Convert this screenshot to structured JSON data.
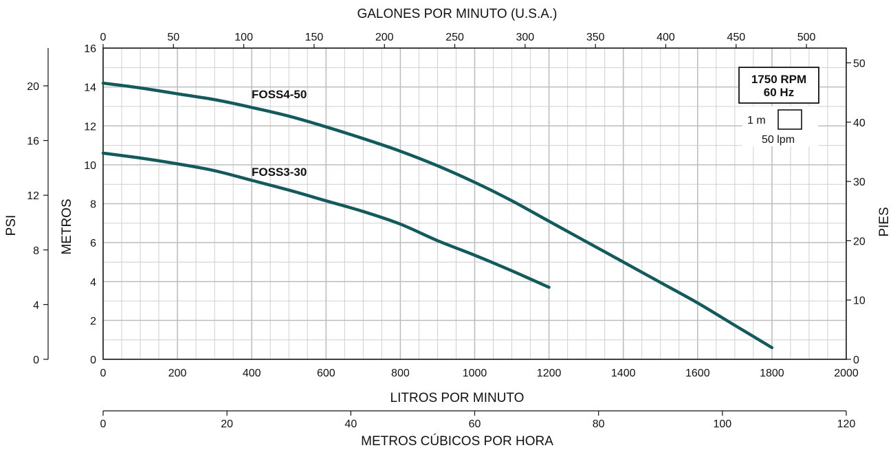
{
  "chart_data": {
    "type": "line",
    "title": "",
    "x_axes": {
      "bottom_primary": {
        "label": "LITROS POR MINUTO",
        "range": [
          0,
          2000
        ],
        "ticks": [
          "0",
          "200",
          "400",
          "600",
          "800",
          "1000",
          "1200",
          "1400",
          "1600",
          "1800",
          "2000"
        ]
      },
      "bottom_secondary": {
        "label": "METROS CÚBICOS POR HORA",
        "range": [
          0,
          120
        ],
        "ticks": [
          "0",
          "20",
          "40",
          "60",
          "80",
          "100",
          "120"
        ]
      },
      "top": {
        "label": "GALONES POR MINUTO (U.S.A.)",
        "range": [
          0,
          528.3
        ],
        "ticks": [
          "0",
          "50",
          "100",
          "150",
          "200",
          "250",
          "300",
          "350",
          "400",
          "450",
          "500"
        ]
      }
    },
    "y_axes": {
      "left_primary": {
        "label": "METROS",
        "range": [
          0,
          16
        ],
        "ticks": [
          "0",
          "2",
          "4",
          "6",
          "8",
          "10",
          "12",
          "14",
          "16"
        ]
      },
      "left_secondary": {
        "label": "PSI",
        "range": [
          0,
          22.76
        ],
        "ticks": [
          "0",
          "4",
          "8",
          "12",
          "16",
          "20"
        ]
      },
      "right": {
        "label": "PIES",
        "range": [
          0,
          52.49
        ],
        "ticks": [
          "0",
          "10",
          "20",
          "30",
          "40",
          "50"
        ]
      }
    },
    "grid": true,
    "series": [
      {
        "name": "FOSS4-50",
        "color": "#145a5c",
        "x": [
          0,
          100,
          200,
          300,
          400,
          500,
          600,
          700,
          800,
          900,
          1000,
          1100,
          1200,
          1300,
          1400,
          1500,
          1600,
          1700,
          1800
        ],
        "y": [
          14.2,
          13.95,
          13.65,
          13.35,
          12.95,
          12.5,
          11.95,
          11.35,
          10.7,
          9.95,
          9.1,
          8.15,
          7.1,
          6.05,
          5.0,
          3.95,
          2.9,
          1.75,
          0.6
        ]
      },
      {
        "name": "FOSS3-30",
        "color": "#145a5c",
        "x": [
          0,
          100,
          200,
          300,
          400,
          500,
          600,
          700,
          800,
          900,
          1000,
          1100,
          1200
        ],
        "y": [
          10.6,
          10.35,
          10.05,
          9.7,
          9.2,
          8.7,
          8.15,
          7.6,
          6.95,
          6.1,
          5.35,
          4.55,
          3.7
        ]
      }
    ],
    "legend_box": {
      "line1": "1750 RPM",
      "line2": "60 Hz",
      "scale_label_1": "1 m",
      "scale_label_2": "50 lpm"
    }
  }
}
